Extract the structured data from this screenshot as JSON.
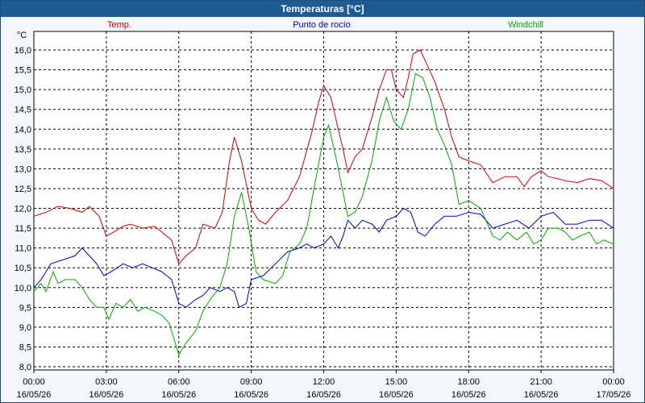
{
  "window_title": "Temperaturas [°C]",
  "chart_data": {
    "type": "line",
    "title": "Temperaturas [°C]",
    "ylabel": "°C",
    "ylim": [
      8.0,
      16.2
    ],
    "grid": true,
    "legend_placement": "top",
    "yticks": [
      "8,0",
      "8,5",
      "9,0",
      "9,5",
      "10,0",
      "10,5",
      "11,0",
      "11,5",
      "12,0",
      "12,5",
      "13,0",
      "13,5",
      "14,0",
      "14,5",
      "15,0",
      "15,5",
      "16,0"
    ],
    "xticks": [
      {
        "time": "00:00",
        "date": "16/05/26"
      },
      {
        "time": "03:00",
        "date": "16/05/26"
      },
      {
        "time": "06:00",
        "date": "16/05/26"
      },
      {
        "time": "09:00",
        "date": "16/05/26"
      },
      {
        "time": "12:00",
        "date": "16/05/26"
      },
      {
        "time": "15:00",
        "date": "16/05/26"
      },
      {
        "time": "18:00",
        "date": "16/05/26"
      },
      {
        "time": "21:00",
        "date": "16/05/26"
      },
      {
        "time": "00:00",
        "date": "17/05/26"
      }
    ],
    "x_unit": "hours since 16/05/26 00:00",
    "series": [
      {
        "name": "Temp.",
        "color": "#cc0000",
        "points": [
          [
            0,
            11.8
          ],
          [
            0.5,
            11.9
          ],
          [
            1,
            12.05
          ],
          [
            1.5,
            12.0
          ],
          [
            2,
            11.9
          ],
          [
            2.3,
            12.05
          ],
          [
            2.7,
            11.8
          ],
          [
            3,
            11.3
          ],
          [
            3.3,
            11.4
          ],
          [
            3.7,
            11.55
          ],
          [
            4,
            11.6
          ],
          [
            4.5,
            11.5
          ],
          [
            5,
            11.55
          ],
          [
            5.3,
            11.4
          ],
          [
            5.7,
            11.2
          ],
          [
            6,
            10.6
          ],
          [
            6.3,
            10.8
          ],
          [
            6.7,
            11.0
          ],
          [
            7,
            11.6
          ],
          [
            7.5,
            11.5
          ],
          [
            7.8,
            11.9
          ],
          [
            8.1,
            13.2
          ],
          [
            8.3,
            13.8
          ],
          [
            8.6,
            13.2
          ],
          [
            9,
            12.0
          ],
          [
            9.3,
            11.7
          ],
          [
            9.6,
            11.6
          ],
          [
            10,
            11.9
          ],
          [
            10.5,
            12.2
          ],
          [
            11,
            12.8
          ],
          [
            11.5,
            13.9
          ],
          [
            11.8,
            14.7
          ],
          [
            12,
            15.1
          ],
          [
            12.3,
            14.8
          ],
          [
            12.6,
            14.0
          ],
          [
            12.8,
            13.5
          ],
          [
            13,
            12.9
          ],
          [
            13.3,
            13.3
          ],
          [
            13.6,
            13.5
          ],
          [
            14,
            14.3
          ],
          [
            14.3,
            15.0
          ],
          [
            14.6,
            15.5
          ],
          [
            14.8,
            15.5
          ],
          [
            15,
            15.0
          ],
          [
            15.3,
            14.8
          ],
          [
            15.5,
            15.3
          ],
          [
            15.7,
            15.9
          ],
          [
            16,
            16.0
          ],
          [
            16.3,
            15.6
          ],
          [
            16.6,
            15.2
          ],
          [
            17,
            14.5
          ],
          [
            17.3,
            13.8
          ],
          [
            17.6,
            13.3
          ],
          [
            18,
            13.2
          ],
          [
            18.5,
            13.1
          ],
          [
            19,
            12.65
          ],
          [
            19.5,
            12.8
          ],
          [
            20,
            12.8
          ],
          [
            20.3,
            12.55
          ],
          [
            20.6,
            12.8
          ],
          [
            21,
            12.95
          ],
          [
            21.3,
            12.8
          ],
          [
            21.7,
            12.75
          ],
          [
            22,
            12.7
          ],
          [
            22.5,
            12.65
          ],
          [
            23,
            12.75
          ],
          [
            23.5,
            12.7
          ],
          [
            24,
            12.5
          ]
        ]
      },
      {
        "name": "Punto de rocío",
        "color": "#0000bb",
        "points": [
          [
            0,
            10.0
          ],
          [
            0.3,
            10.2
          ],
          [
            0.7,
            10.6
          ],
          [
            1.2,
            10.7
          ],
          [
            1.7,
            10.8
          ],
          [
            2,
            11.0
          ],
          [
            2.3,
            10.8
          ],
          [
            2.6,
            10.6
          ],
          [
            2.9,
            10.3
          ],
          [
            3.2,
            10.4
          ],
          [
            3.7,
            10.6
          ],
          [
            4.1,
            10.5
          ],
          [
            4.5,
            10.6
          ],
          [
            4.9,
            10.5
          ],
          [
            5.3,
            10.4
          ],
          [
            5.7,
            10.2
          ],
          [
            6,
            9.6
          ],
          [
            6.3,
            9.5
          ],
          [
            6.7,
            9.7
          ],
          [
            7,
            9.8
          ],
          [
            7.3,
            10.0
          ],
          [
            7.7,
            9.9
          ],
          [
            8,
            10.0
          ],
          [
            8.3,
            9.9
          ],
          [
            8.5,
            9.5
          ],
          [
            8.8,
            9.6
          ],
          [
            9,
            10.2
          ],
          [
            9.5,
            10.3
          ],
          [
            10,
            10.6
          ],
          [
            10.5,
            10.9
          ],
          [
            11,
            11.0
          ],
          [
            11.3,
            11.1
          ],
          [
            11.6,
            11.0
          ],
          [
            12,
            11.1
          ],
          [
            12.3,
            11.3
          ],
          [
            12.6,
            11.0
          ],
          [
            12.8,
            11.3
          ],
          [
            13,
            11.7
          ],
          [
            13.3,
            11.5
          ],
          [
            13.6,
            11.7
          ],
          [
            14,
            11.6
          ],
          [
            14.3,
            11.4
          ],
          [
            14.6,
            11.7
          ],
          [
            15,
            11.8
          ],
          [
            15.3,
            12.0
          ],
          [
            15.6,
            11.9
          ],
          [
            15.9,
            11.4
          ],
          [
            16.2,
            11.3
          ],
          [
            16.6,
            11.6
          ],
          [
            17,
            11.8
          ],
          [
            17.5,
            11.8
          ],
          [
            18,
            11.9
          ],
          [
            18.5,
            11.85
          ],
          [
            19,
            11.5
          ],
          [
            19.5,
            11.6
          ],
          [
            20,
            11.7
          ],
          [
            20.5,
            11.5
          ],
          [
            21,
            11.8
          ],
          [
            21.5,
            11.9
          ],
          [
            22,
            11.6
          ],
          [
            22.5,
            11.6
          ],
          [
            23,
            11.7
          ],
          [
            23.5,
            11.7
          ],
          [
            24,
            11.5
          ]
        ]
      },
      {
        "name": "Windchill",
        "color": "#00aa00",
        "points": [
          [
            0,
            9.9
          ],
          [
            0.3,
            10.1
          ],
          [
            0.5,
            9.9
          ],
          [
            0.8,
            10.4
          ],
          [
            1,
            10.1
          ],
          [
            1.3,
            10.2
          ],
          [
            1.7,
            10.2
          ],
          [
            2,
            10.0
          ],
          [
            2.3,
            9.7
          ],
          [
            2.6,
            9.5
          ],
          [
            2.9,
            9.5
          ],
          [
            3.1,
            9.2
          ],
          [
            3.4,
            9.6
          ],
          [
            3.7,
            9.5
          ],
          [
            4,
            9.7
          ],
          [
            4.3,
            9.4
          ],
          [
            4.6,
            9.5
          ],
          [
            5,
            9.4
          ],
          [
            5.3,
            9.3
          ],
          [
            5.6,
            9.1
          ],
          [
            6,
            8.3
          ],
          [
            6.3,
            8.6
          ],
          [
            6.7,
            8.9
          ],
          [
            7,
            9.4
          ],
          [
            7.3,
            9.7
          ],
          [
            7.7,
            10.0
          ],
          [
            8,
            10.6
          ],
          [
            8.3,
            11.8
          ],
          [
            8.6,
            12.4
          ],
          [
            8.9,
            11.5
          ],
          [
            9.2,
            10.4
          ],
          [
            9.5,
            10.2
          ],
          [
            10,
            10.1
          ],
          [
            10.3,
            10.3
          ],
          [
            10.6,
            10.9
          ],
          [
            11,
            11.1
          ],
          [
            11.3,
            11.5
          ],
          [
            11.6,
            12.5
          ],
          [
            12,
            13.8
          ],
          [
            12.2,
            14.1
          ],
          [
            12.5,
            13.3
          ],
          [
            12.8,
            12.4
          ],
          [
            13,
            11.8
          ],
          [
            13.3,
            11.9
          ],
          [
            13.6,
            12.3
          ],
          [
            14,
            13.2
          ],
          [
            14.3,
            14.2
          ],
          [
            14.6,
            14.8
          ],
          [
            14.9,
            14.2
          ],
          [
            15.2,
            14.0
          ],
          [
            15.5,
            14.5
          ],
          [
            15.8,
            15.4
          ],
          [
            16.1,
            15.3
          ],
          [
            16.4,
            14.8
          ],
          [
            16.7,
            14.0
          ],
          [
            17,
            13.6
          ],
          [
            17.3,
            13.1
          ],
          [
            17.6,
            12.1
          ],
          [
            18,
            12.2
          ],
          [
            18.5,
            12.0
          ],
          [
            19,
            11.3
          ],
          [
            19.3,
            11.2
          ],
          [
            19.6,
            11.4
          ],
          [
            20,
            11.2
          ],
          [
            20.4,
            11.4
          ],
          [
            20.7,
            11.1
          ],
          [
            21,
            11.2
          ],
          [
            21.3,
            11.5
          ],
          [
            21.7,
            11.5
          ],
          [
            22,
            11.4
          ],
          [
            22.3,
            11.2
          ],
          [
            22.6,
            11.3
          ],
          [
            23,
            11.4
          ],
          [
            23.3,
            11.1
          ],
          [
            23.6,
            11.2
          ],
          [
            24,
            11.1
          ]
        ]
      }
    ]
  }
}
